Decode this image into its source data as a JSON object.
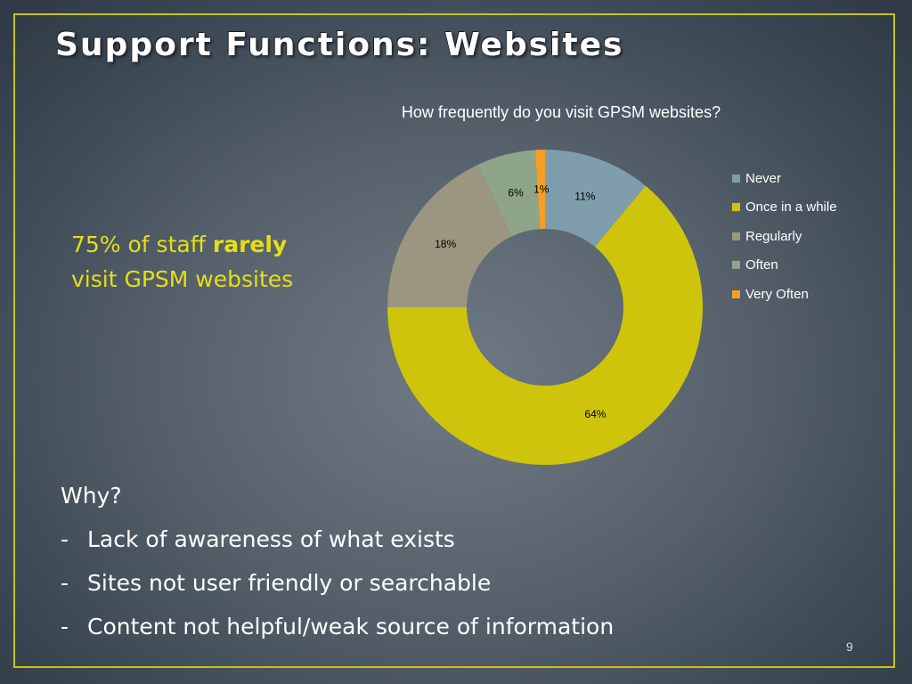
{
  "slide": {
    "title": "Support Functions: Websites",
    "callout_pre": "75% of staff ",
    "callout_bold": "rarely",
    "callout_post": " visit GPSM websites",
    "why_heading": "Why?",
    "bullets": [
      "Lack of awareness of what exists",
      "Sites not user friendly or searchable",
      "Content not helpful/weak source of information"
    ],
    "bullet_marker": "-",
    "page_number": "9"
  },
  "colors": {
    "frame": "#c8c21a",
    "callout_text": "#e6df12"
  },
  "chart_data": {
    "type": "pie",
    "donut": true,
    "title": "How frequently do you visit GPSM websites?",
    "categories": [
      "Never",
      "Once in a while",
      "Regularly",
      "Often",
      "Very Often"
    ],
    "values": [
      11,
      64,
      18,
      6,
      1
    ],
    "labels": [
      "11%",
      "64%",
      "18%",
      "6%",
      "1%"
    ],
    "colors": [
      "#7f9daa",
      "#cfc40c",
      "#9a9680",
      "#8fa58a",
      "#f5a023"
    ],
    "legend_position": "right",
    "start_angle_deg": 0,
    "direction": "clockwise"
  }
}
